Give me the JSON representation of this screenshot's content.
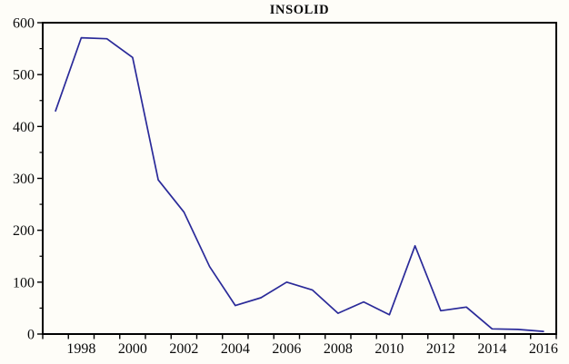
{
  "title": "INSOLID",
  "colors": {
    "line": "#2a2a99",
    "frame": "#000000",
    "text": "#0a0a0a",
    "background": "#fefdf8"
  },
  "chart_data": {
    "type": "line",
    "title": "INSOLID",
    "series_name": "INSOLID",
    "x": [
      1997,
      1998,
      1999,
      2000,
      2001,
      2002,
      2003,
      2004,
      2005,
      2006,
      2007,
      2008,
      2009,
      2010,
      2011,
      2012,
      2013,
      2014,
      2015,
      2016
    ],
    "values": [
      430,
      571,
      569,
      533,
      297,
      235,
      130,
      55,
      70,
      100,
      85,
      40,
      62,
      37,
      170,
      45,
      52,
      10,
      9,
      5
    ],
    "xlabel": "",
    "ylabel": "",
    "xlim": [
      1996.5,
      2016.5
    ],
    "ylim": [
      0,
      600
    ],
    "y_major_ticks": [
      0,
      100,
      200,
      300,
      400,
      500,
      600
    ],
    "y_minor_tick_step": 50,
    "x_labeled_years": [
      1998,
      2000,
      2002,
      2004,
      2006,
      2008,
      2010,
      2012,
      2014,
      2016
    ],
    "x_tick_boundaries_step": 1,
    "grid": false,
    "legend_position": "none"
  }
}
